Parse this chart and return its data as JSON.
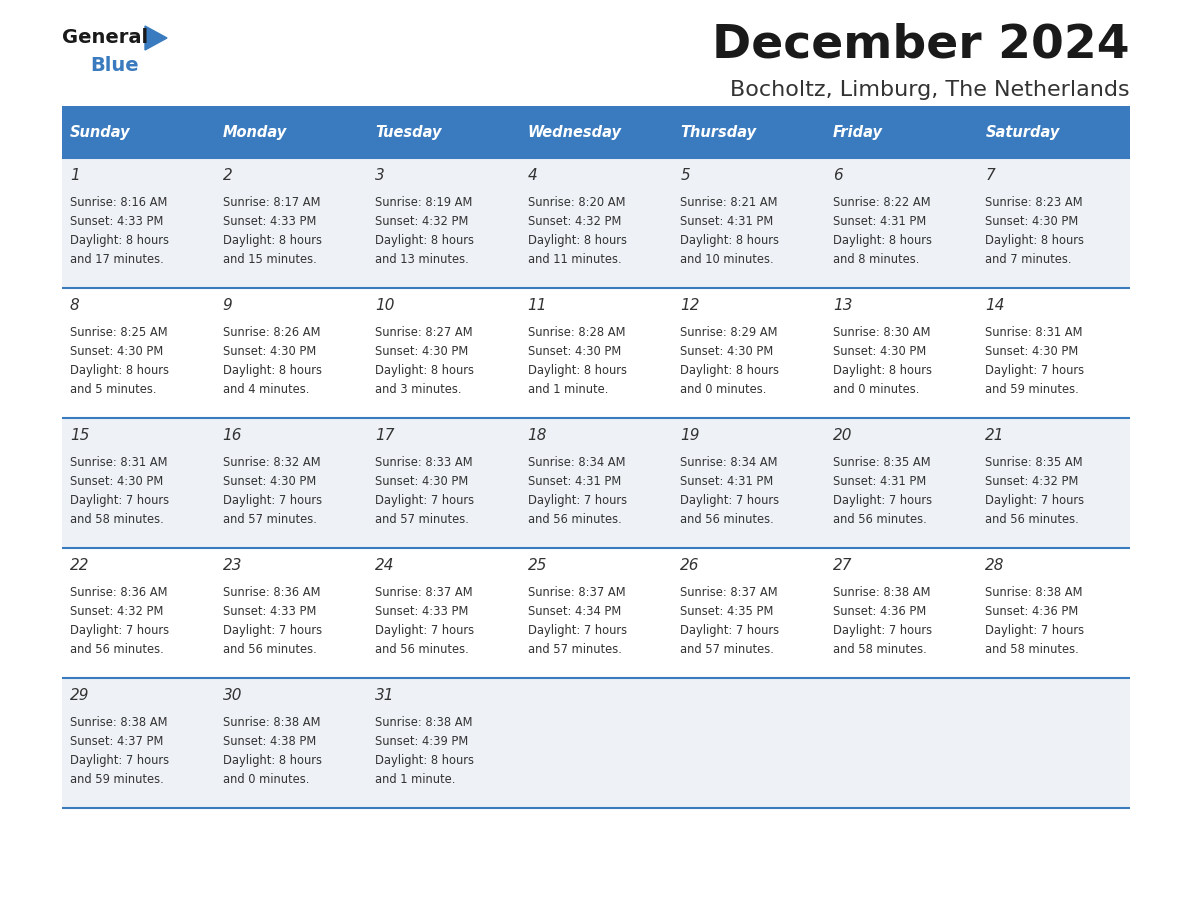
{
  "title": "December 2024",
  "subtitle": "Bocholtz, Limburg, The Netherlands",
  "days_of_week": [
    "Sunday",
    "Monday",
    "Tuesday",
    "Wednesday",
    "Thursday",
    "Friday",
    "Saturday"
  ],
  "header_bg": "#3a7bbf",
  "header_text": "#ffffff",
  "row_bg_odd": "#eef2f7",
  "row_bg_even": "#ffffff",
  "cell_text_color": "#333333",
  "day_num_color": "#333333",
  "separator_color": "#3a7bbf",
  "title_color": "#1a1a1a",
  "subtitle_color": "#333333",
  "weeks": [
    [
      {
        "day": 1,
        "sunrise": "8:16 AM",
        "sunset": "4:33 PM",
        "daylight": "8 hours",
        "daylight2": "and 17 minutes."
      },
      {
        "day": 2,
        "sunrise": "8:17 AM",
        "sunset": "4:33 PM",
        "daylight": "8 hours",
        "daylight2": "and 15 minutes."
      },
      {
        "day": 3,
        "sunrise": "8:19 AM",
        "sunset": "4:32 PM",
        "daylight": "8 hours",
        "daylight2": "and 13 minutes."
      },
      {
        "day": 4,
        "sunrise": "8:20 AM",
        "sunset": "4:32 PM",
        "daylight": "8 hours",
        "daylight2": "and 11 minutes."
      },
      {
        "day": 5,
        "sunrise": "8:21 AM",
        "sunset": "4:31 PM",
        "daylight": "8 hours",
        "daylight2": "and 10 minutes."
      },
      {
        "day": 6,
        "sunrise": "8:22 AM",
        "sunset": "4:31 PM",
        "daylight": "8 hours",
        "daylight2": "and 8 minutes."
      },
      {
        "day": 7,
        "sunrise": "8:23 AM",
        "sunset": "4:30 PM",
        "daylight": "8 hours",
        "daylight2": "and 7 minutes."
      }
    ],
    [
      {
        "day": 8,
        "sunrise": "8:25 AM",
        "sunset": "4:30 PM",
        "daylight": "8 hours",
        "daylight2": "and 5 minutes."
      },
      {
        "day": 9,
        "sunrise": "8:26 AM",
        "sunset": "4:30 PM",
        "daylight": "8 hours",
        "daylight2": "and 4 minutes."
      },
      {
        "day": 10,
        "sunrise": "8:27 AM",
        "sunset": "4:30 PM",
        "daylight": "8 hours",
        "daylight2": "and 3 minutes."
      },
      {
        "day": 11,
        "sunrise": "8:28 AM",
        "sunset": "4:30 PM",
        "daylight": "8 hours",
        "daylight2": "and 1 minute."
      },
      {
        "day": 12,
        "sunrise": "8:29 AM",
        "sunset": "4:30 PM",
        "daylight": "8 hours",
        "daylight2": "and 0 minutes."
      },
      {
        "day": 13,
        "sunrise": "8:30 AM",
        "sunset": "4:30 PM",
        "daylight": "8 hours",
        "daylight2": "and 0 minutes."
      },
      {
        "day": 14,
        "sunrise": "8:31 AM",
        "sunset": "4:30 PM",
        "daylight": "7 hours",
        "daylight2": "and 59 minutes."
      }
    ],
    [
      {
        "day": 15,
        "sunrise": "8:31 AM",
        "sunset": "4:30 PM",
        "daylight": "7 hours",
        "daylight2": "and 58 minutes."
      },
      {
        "day": 16,
        "sunrise": "8:32 AM",
        "sunset": "4:30 PM",
        "daylight": "7 hours",
        "daylight2": "and 57 minutes."
      },
      {
        "day": 17,
        "sunrise": "8:33 AM",
        "sunset": "4:30 PM",
        "daylight": "7 hours",
        "daylight2": "and 57 minutes."
      },
      {
        "day": 18,
        "sunrise": "8:34 AM",
        "sunset": "4:31 PM",
        "daylight": "7 hours",
        "daylight2": "and 56 minutes."
      },
      {
        "day": 19,
        "sunrise": "8:34 AM",
        "sunset": "4:31 PM",
        "daylight": "7 hours",
        "daylight2": "and 56 minutes."
      },
      {
        "day": 20,
        "sunrise": "8:35 AM",
        "sunset": "4:31 PM",
        "daylight": "7 hours",
        "daylight2": "and 56 minutes."
      },
      {
        "day": 21,
        "sunrise": "8:35 AM",
        "sunset": "4:32 PM",
        "daylight": "7 hours",
        "daylight2": "and 56 minutes."
      }
    ],
    [
      {
        "day": 22,
        "sunrise": "8:36 AM",
        "sunset": "4:32 PM",
        "daylight": "7 hours",
        "daylight2": "and 56 minutes."
      },
      {
        "day": 23,
        "sunrise": "8:36 AM",
        "sunset": "4:33 PM",
        "daylight": "7 hours",
        "daylight2": "and 56 minutes."
      },
      {
        "day": 24,
        "sunrise": "8:37 AM",
        "sunset": "4:33 PM",
        "daylight": "7 hours",
        "daylight2": "and 56 minutes."
      },
      {
        "day": 25,
        "sunrise": "8:37 AM",
        "sunset": "4:34 PM",
        "daylight": "7 hours",
        "daylight2": "and 57 minutes."
      },
      {
        "day": 26,
        "sunrise": "8:37 AM",
        "sunset": "4:35 PM",
        "daylight": "7 hours",
        "daylight2": "and 57 minutes."
      },
      {
        "day": 27,
        "sunrise": "8:38 AM",
        "sunset": "4:36 PM",
        "daylight": "7 hours",
        "daylight2": "and 58 minutes."
      },
      {
        "day": 28,
        "sunrise": "8:38 AM",
        "sunset": "4:36 PM",
        "daylight": "7 hours",
        "daylight2": "and 58 minutes."
      }
    ],
    [
      {
        "day": 29,
        "sunrise": "8:38 AM",
        "sunset": "4:37 PM",
        "daylight": "7 hours",
        "daylight2": "and 59 minutes."
      },
      {
        "day": 30,
        "sunrise": "8:38 AM",
        "sunset": "4:38 PM",
        "daylight": "8 hours",
        "daylight2": "and 0 minutes."
      },
      {
        "day": 31,
        "sunrise": "8:38 AM",
        "sunset": "4:39 PM",
        "daylight": "8 hours",
        "daylight2": "and 1 minute."
      },
      null,
      null,
      null,
      null
    ]
  ]
}
